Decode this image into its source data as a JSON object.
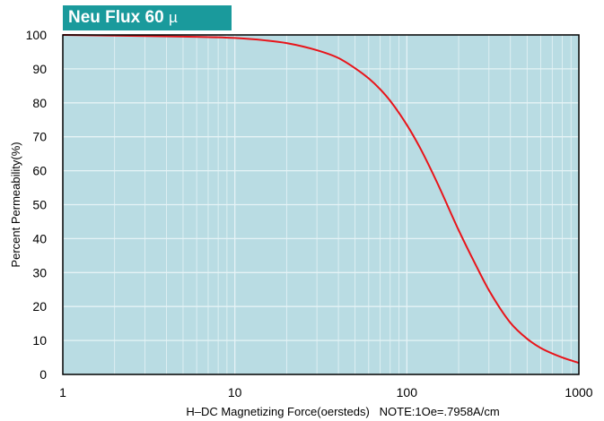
{
  "colors": {
    "title_bg": "#1a9a9c",
    "plot_bg": "#b9dce3",
    "grid": "#e6f3f6",
    "curve": "#e8141a",
    "frame": "#000000"
  },
  "chart_data": {
    "type": "line",
    "title": "Neu Flux 60",
    "title_symbol": "µ",
    "xlabel": "H–DC Magnetizing Force(oersteds)   NOTE:1Oe=.7958A/cm",
    "ylabel": "Percent Permeability(%)",
    "x_scale": "log",
    "xlim": [
      1,
      1000
    ],
    "ylim": [
      0,
      100
    ],
    "x_ticks": [
      1,
      10,
      100,
      1000
    ],
    "x_tick_labels": [
      "1",
      "10",
      "100",
      "1000"
    ],
    "y_ticks": [
      0,
      10,
      20,
      30,
      40,
      50,
      60,
      70,
      80,
      90,
      100
    ],
    "y_tick_labels": [
      "0",
      "10",
      "20",
      "30",
      "40",
      "50",
      "60",
      "70",
      "80",
      "90",
      "100"
    ],
    "grid": true,
    "series": [
      {
        "color": "#e8141a",
        "x": [
          1,
          2,
          5,
          10,
          15,
          20,
          30,
          40,
          50,
          60,
          70,
          80,
          100,
          120,
          150,
          200,
          250,
          300,
          400,
          500,
          600,
          800,
          1000
        ],
        "y": [
          100,
          99.8,
          99.5,
          99.1,
          98.4,
          97.6,
          95.5,
          93.2,
          90.2,
          87.2,
          84.0,
          80.6,
          73.5,
          66.5,
          56.5,
          42.5,
          32.5,
          24.8,
          15.2,
          10.5,
          7.8,
          5.0,
          3.4
        ]
      }
    ]
  }
}
